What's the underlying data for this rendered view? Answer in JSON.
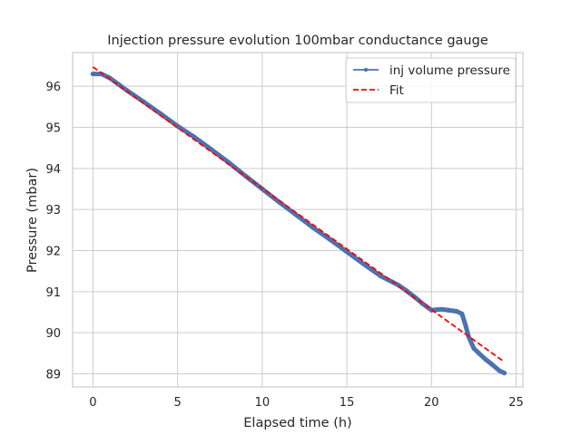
{
  "chart_data": {
    "type": "line",
    "title": "Injection pressure evolution 100mbar conductance gauge",
    "xlabel": "Elapsed time (h)",
    "ylabel": "Pressure (mbar)",
    "xlim": [
      -1.2,
      25.4
    ],
    "ylim": [
      88.68,
      96.82
    ],
    "xticks": [
      0,
      5,
      10,
      15,
      20,
      25
    ],
    "yticks": [
      89,
      90,
      91,
      92,
      93,
      94,
      95,
      96
    ],
    "grid": true,
    "legend_position": "top-right",
    "series": [
      {
        "name": "inj volume pressure",
        "style": "line-with-dot-markers",
        "color": "#4c72b0",
        "x": [
          0,
          0.5,
          1.0,
          1.5,
          2,
          3,
          4,
          5,
          6,
          7,
          8,
          9,
          10,
          11,
          12,
          13,
          14,
          15,
          16,
          17,
          18,
          18.5,
          19,
          19.5,
          20,
          20.3,
          20.6,
          21.0,
          21.5,
          21.8,
          22.0,
          22.2,
          22.5,
          22.8,
          23.2,
          23.6,
          24.0,
          24.3
        ],
        "y": [
          96.3,
          96.3,
          96.2,
          96.05,
          95.9,
          95.62,
          95.33,
          95.03,
          94.76,
          94.46,
          94.15,
          93.82,
          93.5,
          93.18,
          92.87,
          92.56,
          92.27,
          91.97,
          91.67,
          91.38,
          91.17,
          91.03,
          90.87,
          90.7,
          90.55,
          90.56,
          90.57,
          90.55,
          90.52,
          90.46,
          90.2,
          89.9,
          89.62,
          89.5,
          89.35,
          89.22,
          89.08,
          89.02
        ]
      },
      {
        "name": "Fit",
        "style": "dashed",
        "color": "#ff0000",
        "x": [
          0,
          24.3
        ],
        "y": [
          96.47,
          89.29
        ]
      }
    ]
  }
}
